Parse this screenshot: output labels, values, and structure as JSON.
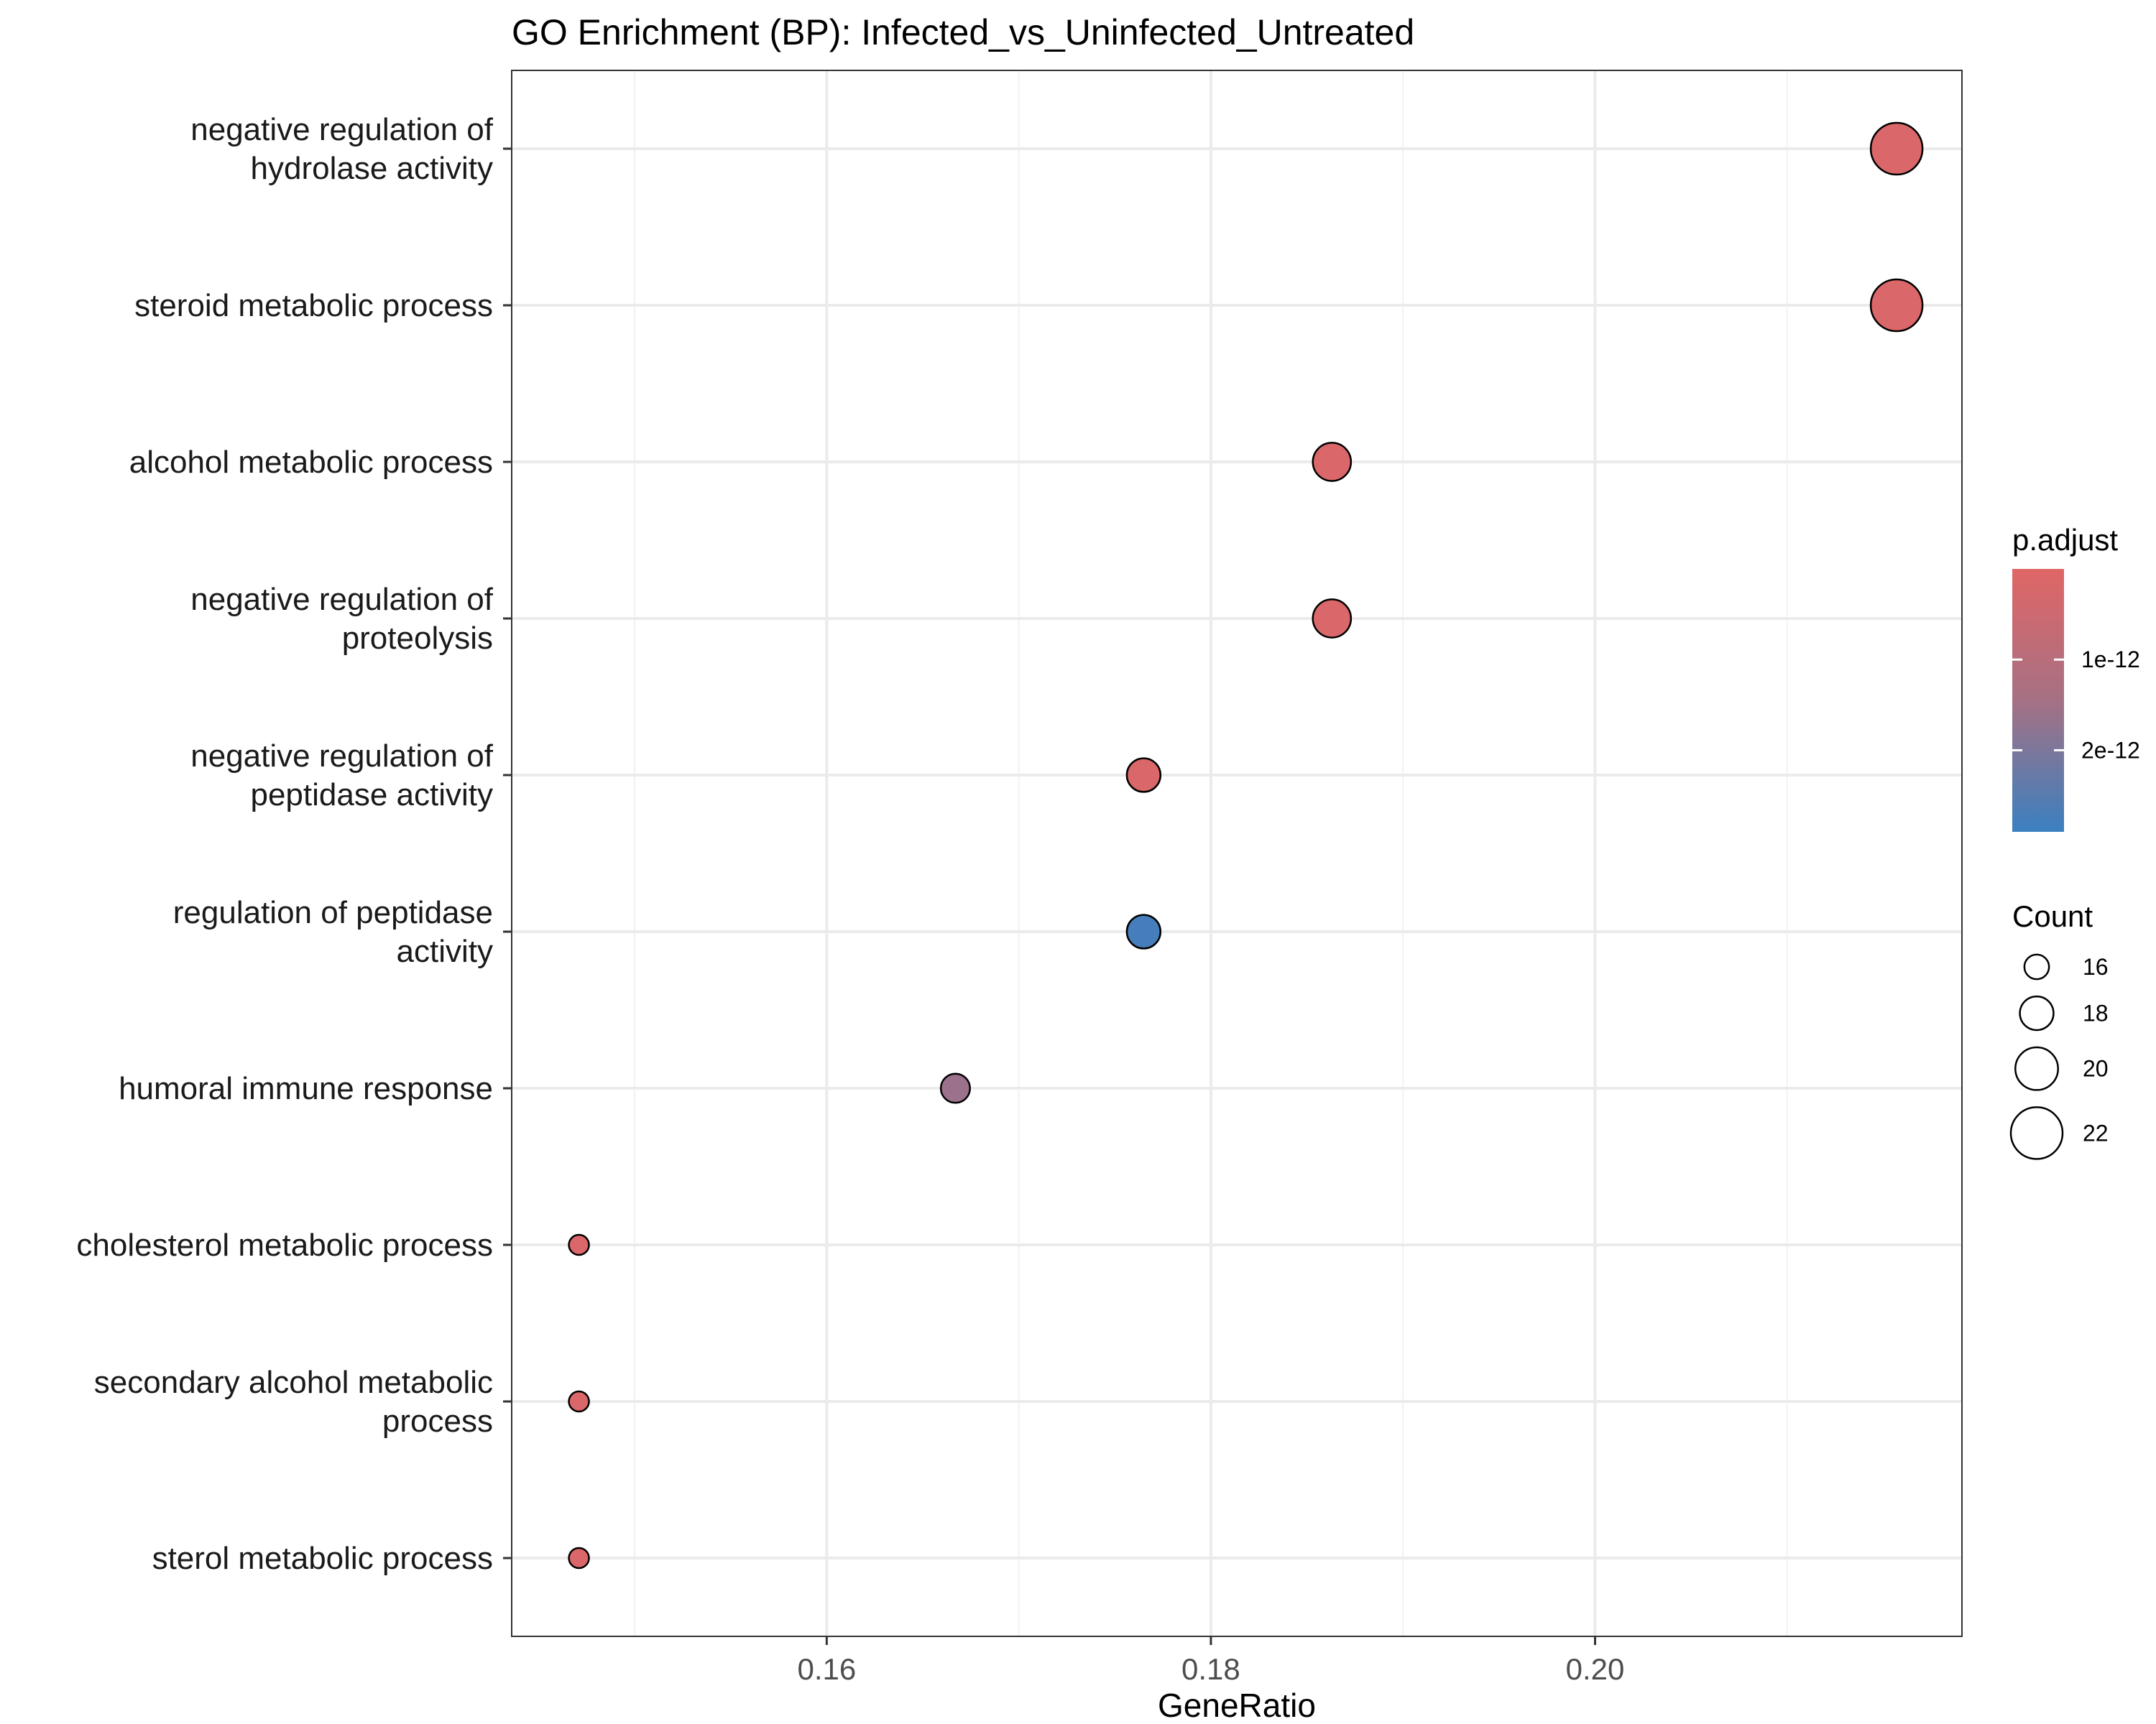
{
  "chart_data": {
    "type": "scatter",
    "title": "GO Enrichment (BP): Infected_vs_Uninfected_Untreated",
    "xlabel": "GeneRatio",
    "ylabel": "",
    "xlim": [
      0.1436,
      0.2191
    ],
    "xticks": [
      0.16,
      0.18,
      0.2
    ],
    "xtick_labels": [
      "0.16",
      "0.18",
      "0.20"
    ],
    "grid": true,
    "points": [
      {
        "term": "negative regulation of hydrolase activity",
        "label_lines": [
          "negative regulation of",
          "hydrolase activity"
        ],
        "x": 0.2157,
        "count": 22,
        "p_adjust": 1e-13
      },
      {
        "term": "steroid metabolic process",
        "label_lines": [
          "steroid metabolic process"
        ],
        "x": 0.2157,
        "count": 22,
        "p_adjust": 1e-13
      },
      {
        "term": "alcohol metabolic process",
        "label_lines": [
          "alcohol metabolic process"
        ],
        "x": 0.1863,
        "count": 19,
        "p_adjust": 1e-13
      },
      {
        "term": "negative regulation of proteolysis",
        "label_lines": [
          "negative regulation of",
          "proteolysis"
        ],
        "x": 0.1863,
        "count": 19,
        "p_adjust": 1e-13
      },
      {
        "term": "negative regulation of peptidase activity",
        "label_lines": [
          "negative regulation of",
          "peptidase activity"
        ],
        "x": 0.1765,
        "count": 18,
        "p_adjust": 1e-13
      },
      {
        "term": "regulation of peptidase activity",
        "label_lines": [
          "regulation of peptidase",
          "activity"
        ],
        "x": 0.1765,
        "count": 18,
        "p_adjust": 2.7e-12
      },
      {
        "term": "humoral immune response",
        "label_lines": [
          "humoral immune response"
        ],
        "x": 0.1667,
        "count": 17,
        "p_adjust": 1.2e-12
      },
      {
        "term": "cholesterol metabolic process",
        "label_lines": [
          "cholesterol metabolic process"
        ],
        "x": 0.1471,
        "count": 15,
        "p_adjust": 1e-13
      },
      {
        "term": "secondary alcohol metabolic process",
        "label_lines": [
          "secondary alcohol metabolic",
          "process"
        ],
        "x": 0.1471,
        "count": 15,
        "p_adjust": 1e-13
      },
      {
        "term": "sterol metabolic process",
        "label_lines": [
          "sterol metabolic process"
        ],
        "x": 0.1471,
        "count": 15,
        "p_adjust": 1e-13
      }
    ],
    "color_legend": {
      "title": "p.adjust",
      "range": [
        0.0,
        2.9e-12
      ],
      "ticks": [
        {
          "value": 1e-12,
          "label": "1e-12"
        },
        {
          "value": 2e-12,
          "label": "2e-12"
        }
      ],
      "low_color": "#e06666",
      "high_color": "#3a80c0",
      "placement": "right"
    },
    "size_legend": {
      "title": "Count",
      "entries": [
        {
          "value": 16,
          "label": "16"
        },
        {
          "value": 18,
          "label": "18"
        },
        {
          "value": 20,
          "label": "20"
        },
        {
          "value": 22,
          "label": "22"
        }
      ],
      "placement": "right"
    }
  }
}
